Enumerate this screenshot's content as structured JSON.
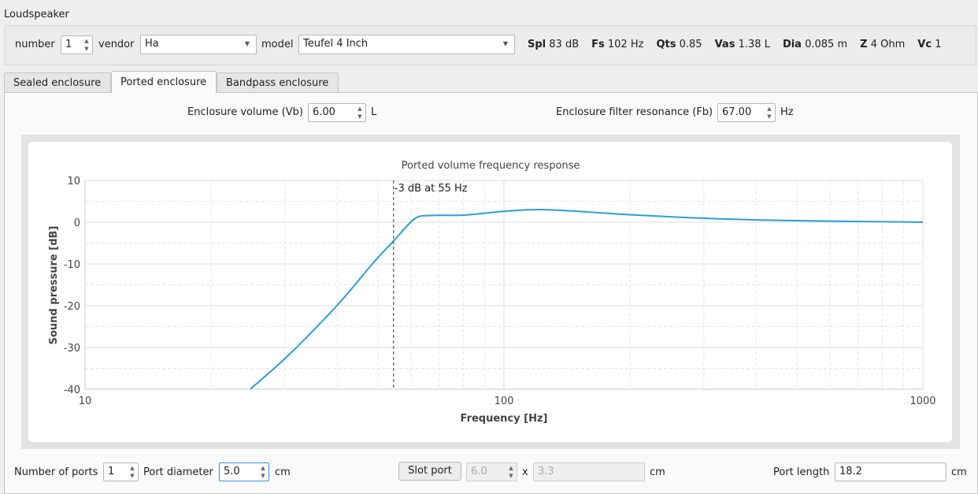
{
  "group_title": "Loudspeaker",
  "speaker": {
    "number_label": "number",
    "number": "1",
    "vendor_label": "vendor",
    "vendor": "Ha",
    "model_label": "model",
    "model": "Teufel 4 Inch",
    "params": [
      {
        "name": "Spl",
        "value": "83",
        "unit": "dB"
      },
      {
        "name": "Fs",
        "value": "102",
        "unit": "Hz"
      },
      {
        "name": "Qts",
        "value": "0.85",
        "unit": ""
      },
      {
        "name": "Vas",
        "value": "1.38",
        "unit": "L"
      },
      {
        "name": "Dia",
        "value": "0.085",
        "unit": "m"
      },
      {
        "name": "Z",
        "value": "4",
        "unit": "Ohm"
      },
      {
        "name": "Vc",
        "value": "1",
        "unit": ""
      }
    ]
  },
  "tabs": [
    {
      "label": "Sealed enclosure"
    },
    {
      "label": "Ported enclosure",
      "active": true
    },
    {
      "label": "Bandpass enclosure"
    }
  ],
  "ported": {
    "vb_label": "Enclosure volume (Vb)",
    "vb": "6.00",
    "vb_unit": "L",
    "fb_label": "Enclosure filter resonance (Fb)",
    "fb": "67.00",
    "fb_unit": "Hz",
    "ports_label": "Number of ports",
    "ports": "1",
    "diameter_label": "Port diameter",
    "diameter": "5.0",
    "diameter_unit": "cm",
    "slot_button": "Slot port",
    "slot_w": "6.0",
    "slot_x": "x",
    "slot_h": "3.3",
    "slot_unit": "cm",
    "length_label": "Port length",
    "length": "18.2",
    "length_unit": "cm"
  },
  "chart_data": {
    "type": "line",
    "title": "Ported volume frequency response",
    "xlabel": "Frequency [Hz]",
    "ylabel": "Sound pressure [dB]",
    "xscale": "log",
    "xlim": [
      10,
      1000
    ],
    "ylim": [
      -40,
      10
    ],
    "xticks": [
      "10",
      "100",
      "1000"
    ],
    "yticks": [
      "10",
      "0",
      "-10",
      "-20",
      "-30",
      "-40"
    ],
    "grid": true,
    "color": "#2a9fd6",
    "annotation": {
      "text": "-3 dB at 55 Hz",
      "x": 54.5
    },
    "series": [
      {
        "x": [
          24.8,
          30.7,
          39.9,
          48.5,
          54.5,
          61.2,
          66.9,
          80.5,
          100,
          125.6,
          200,
          308,
          474,
          1000
        ],
        "y": [
          -40,
          -31.7,
          -20,
          -10,
          -4.5,
          0.8,
          1.6,
          1.7,
          2.6,
          3.0,
          1.8,
          0.9,
          0.4,
          0.0
        ]
      }
    ]
  }
}
